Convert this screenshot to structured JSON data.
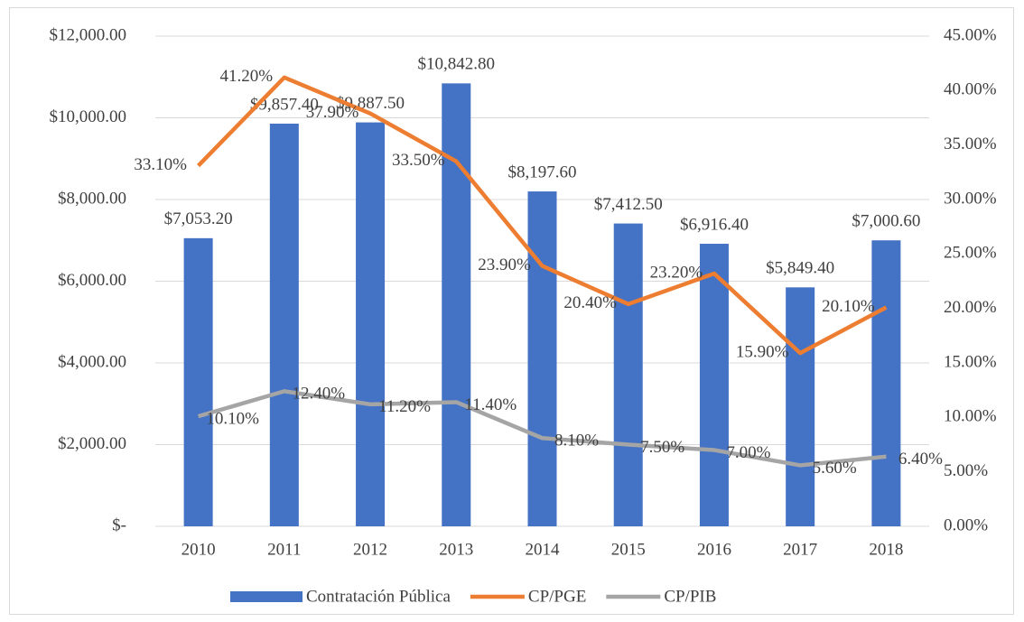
{
  "chart_data": {
    "type": "combo",
    "categories": [
      "2010",
      "2011",
      "2012",
      "2013",
      "2014",
      "2015",
      "2016",
      "2017",
      "2018"
    ],
    "series": [
      {
        "name": "Contratación Pública",
        "type": "bar",
        "color": "#4472c4",
        "axis": "y",
        "values": [
          7053.2,
          9857.4,
          9887.5,
          10842.8,
          8197.6,
          7412.5,
          6916.4,
          5849.4,
          7000.6
        ],
        "value_labels": [
          "$7,053.20",
          "$9,857.40",
          "$9,887.50",
          "$10,842.80",
          "$8,197.60",
          "$7,412.50",
          "$6,916.40",
          "$5,849.40",
          "$7,000.60"
        ]
      },
      {
        "name": "CP/PGE",
        "type": "line",
        "color": "#ed7d31",
        "axis": "y2",
        "values": [
          33.1,
          41.2,
          37.9,
          33.5,
          23.9,
          20.4,
          23.2,
          15.9,
          20.1
        ],
        "value_labels": [
          "33.10%",
          "41.20%",
          "37.90%",
          "33.50%",
          "23.90%",
          "20.40%",
          "23.20%",
          "15.90%",
          "20.10%"
        ]
      },
      {
        "name": "CP/PIB",
        "type": "line",
        "color": "#a5a5a5",
        "axis": "y2",
        "values": [
          10.1,
          12.4,
          11.2,
          11.4,
          8.1,
          7.5,
          7.0,
          5.6,
          6.4
        ],
        "value_labels": [
          "10.10%",
          "12.40%",
          "11.20%",
          "11.40%",
          "8.10%",
          "7.50%",
          "7.00%",
          "5.60%",
          "6.40%"
        ]
      }
    ],
    "ylim": [
      0,
      12000
    ],
    "yticks": [
      {
        "value": 0,
        "label": "$-"
      },
      {
        "value": 2000,
        "label": "$2,000.00"
      },
      {
        "value": 4000,
        "label": "$4,000.00"
      },
      {
        "value": 6000,
        "label": "$6,000.00"
      },
      {
        "value": 8000,
        "label": "$8,000.00"
      },
      {
        "value": 10000,
        "label": "$10,000.00"
      },
      {
        "value": 12000,
        "label": "$12,000.00"
      }
    ],
    "y2lim": [
      0,
      45
    ],
    "y2ticks": [
      {
        "value": 0,
        "label": "0.00%"
      },
      {
        "value": 5,
        "label": "5.00%"
      },
      {
        "value": 10,
        "label": "10.00%"
      },
      {
        "value": 15,
        "label": "15.00%"
      },
      {
        "value": 20,
        "label": "20.00%"
      },
      {
        "value": 25,
        "label": "25.00%"
      },
      {
        "value": 30,
        "label": "30.00%"
      },
      {
        "value": 35,
        "label": "35.00%"
      },
      {
        "value": 40,
        "label": "40.00%"
      },
      {
        "value": 45,
        "label": "45.00%"
      }
    ],
    "grid": true,
    "legend": "bottom"
  }
}
